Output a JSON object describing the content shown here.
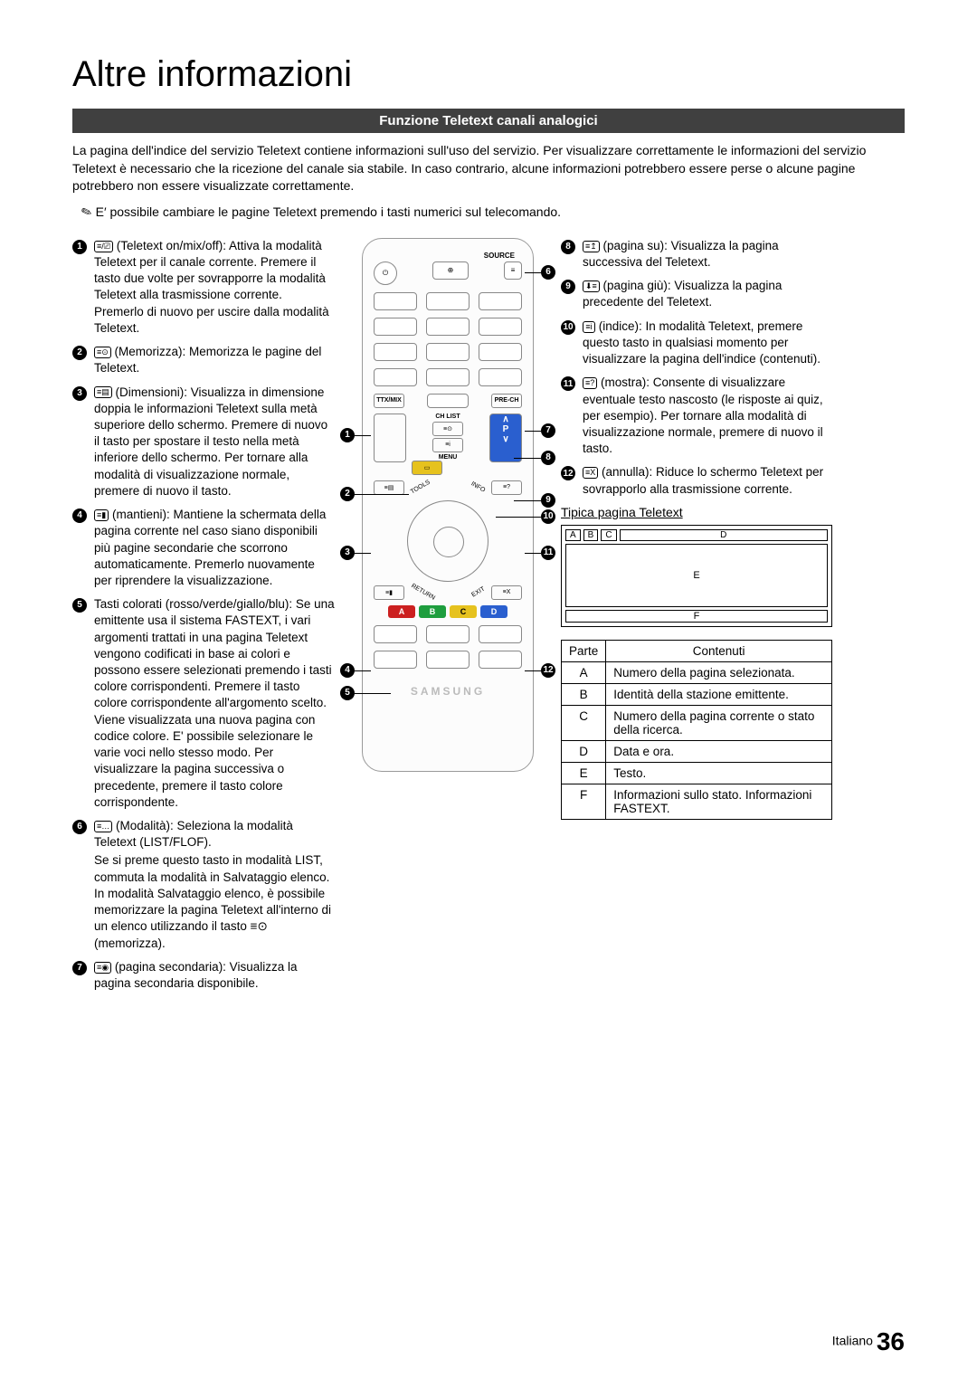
{
  "page_title": "Altre informazioni",
  "section_header": "Funzione Teletext canali analogici",
  "intro": "La pagina dell'indice del servizio Teletext contiene informazioni sull'uso del servizio. Per visualizzare correttamente le informazioni del servizio Teletext è necessario che la ricezione del canale sia stabile. In caso contrario, alcune informazioni potrebbero essere perse o alcune pagine potrebbero non essere visualizzate correttamente.",
  "note": "E′ possibile cambiare le pagine Teletext premendo i tasti numerici sul telecomando.",
  "left_items": [
    {
      "n": "1",
      "icon": "≡/⎚",
      "text": "(Teletext on/mix/off): Attiva la modalità Teletext per il canale corrente. Premere il tasto due volte per sovrapporre la modalità Teletext alla trasmissione corrente. Premerlo di nuovo per uscire dalla modalità Teletext."
    },
    {
      "n": "2",
      "icon": "≡⊙",
      "text": "(Memorizza): Memorizza le pagine del Teletext."
    },
    {
      "n": "3",
      "icon": "≡▤",
      "text": "(Dimensioni): Visualizza in dimensione doppia le informazioni Teletext sulla metà superiore dello schermo. Premere di nuovo il tasto per spostare il testo nella metà inferiore dello schermo. Per tornare alla modalità di visualizzazione normale, premere di nuovo il tasto."
    },
    {
      "n": "4",
      "icon": "≡▮",
      "text": "(mantieni): Mantiene la schermata della pagina corrente nel caso siano disponibili più pagine secondarie che scorrono automaticamente. Premerlo nuovamente per riprendere la visualizzazione."
    },
    {
      "n": "5",
      "icon": "",
      "text": "Tasti colorati (rosso/verde/giallo/blu): Se una emittente usa il sistema FASTEXT, i vari argomenti trattati in una pagina Teletext vengono codificati in base ai colori e possono essere selezionati premendo i tasti colore corrispondenti. Premere il tasto colore corrispondente all'argomento scelto. Viene visualizzata una nuova pagina con codice colore. E' possibile selezionare le varie voci nello stesso modo. Per visualizzare la pagina successiva o precedente, premere il tasto colore corrispondente."
    },
    {
      "n": "6",
      "icon": "≡…",
      "text": "(Modalità): Seleziona la modalità Teletext (LIST/FLOF).",
      "sub": "Se si preme questo tasto in modalità LIST, commuta la modalità in Salvataggio elenco. In modalità Salvataggio elenco, è possibile memorizzare la pagina Teletext all'interno di un elenco utilizzando il tasto ≡⊙ (memorizza)."
    },
    {
      "n": "7",
      "icon": "≡◉",
      "text": "(pagina secondaria): Visualizza la pagina secondaria disponibile."
    }
  ],
  "right_items": [
    {
      "n": "8",
      "icon": "≡↥",
      "text": "(pagina su): Visualizza la pagina successiva del Teletext."
    },
    {
      "n": "9",
      "icon": "⬇≡",
      "text": "(pagina giù): Visualizza la pagina precedente del Teletext."
    },
    {
      "n": "10",
      "icon": "≡i",
      "text": "(indice): In modalità Teletext, premere questo tasto in qualsiasi momento per visualizzare la pagina dell'indice (contenuti)."
    },
    {
      "n": "11",
      "icon": "≡?",
      "text": "(mostra): Consente di visualizzare eventuale testo nascosto (le risposte ai quiz, per esempio). Per tornare alla modalità di visualizzazione normale, premere di nuovo il tasto."
    },
    {
      "n": "12",
      "icon": "≡X",
      "text": "(annulla): Riduce lo schermo Teletext per sovrapporlo alla trasmissione corrente."
    }
  ],
  "remote": {
    "source_label": "SOURCE",
    "ttxmix": "TTX/MIX",
    "prech": "PRE-CH",
    "chlist": "CH LIST",
    "p_label": "P",
    "menu": "MENU",
    "tools": "TOOLS",
    "info": "INFO",
    "return": "RETURN",
    "exit": "EXIT",
    "brand": "SAMSUNG",
    "colors": {
      "a": "#cc2020",
      "b": "#1e9e3e",
      "c": "#e6c21e",
      "d": "#2a5fcf"
    },
    "p_color": "#2a5fcf",
    "menu_color": "#e6c21e",
    "color_labels": {
      "a": "A",
      "b": "B",
      "c": "C",
      "d": "D"
    }
  },
  "teletext_fig": {
    "title": "Tipica pagina Teletext",
    "cells": {
      "a": "A",
      "b": "B",
      "c": "C",
      "d": "D",
      "e": "E",
      "f": "F"
    }
  },
  "parts_table": {
    "head": {
      "p": "Parte",
      "c": "Contenuti"
    },
    "rows": [
      {
        "p": "A",
        "c": "Numero della pagina selezionata."
      },
      {
        "p": "B",
        "c": "Identità della stazione emittente."
      },
      {
        "p": "C",
        "c": "Numero della pagina corrente o stato della ricerca."
      },
      {
        "p": "D",
        "c": "Data e ora."
      },
      {
        "p": "E",
        "c": "Testo."
      },
      {
        "p": "F",
        "c": "Informazioni sullo stato. Informazioni FASTEXT."
      }
    ]
  },
  "footer": {
    "lang": "Italiano",
    "page": "36"
  }
}
